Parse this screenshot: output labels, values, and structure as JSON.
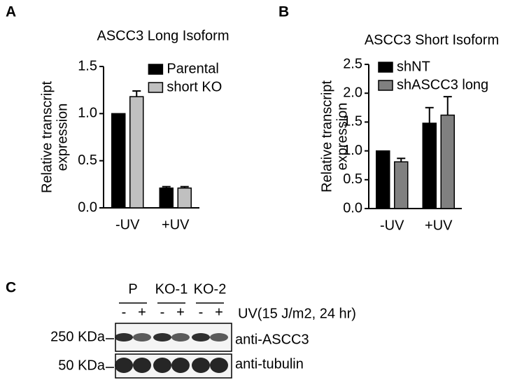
{
  "chart_data": [
    {
      "type": "bar",
      "panel": "A",
      "title": "ASCC3 Long Isoform",
      "ylabel": [
        "Relative transcript",
        "expression"
      ],
      "categories": [
        "-UV",
        "+UV"
      ],
      "series": [
        {
          "name": "Parental",
          "color": "#000000",
          "values": [
            1.0,
            0.21
          ],
          "errors": [
            0,
            0.015
          ]
        },
        {
          "name": "short KO",
          "color": "#c0c0c0",
          "values": [
            1.18,
            0.21
          ],
          "errors": [
            0.06,
            0.015
          ]
        }
      ],
      "ylim": [
        0,
        1.5
      ],
      "yticks": [
        {
          "value": 0,
          "label": "0.0"
        },
        {
          "value": 0.5,
          "label": "0.5"
        },
        {
          "value": 1,
          "label": "1.0"
        },
        {
          "value": 1.5,
          "label": "1.5"
        }
      ],
      "legend": "upper right"
    },
    {
      "type": "bar",
      "panel": "B",
      "title": "ASCC3 Short Isoform",
      "ylabel": [
        "Relative transcript",
        "expression"
      ],
      "categories": [
        "-UV",
        "+UV"
      ],
      "series": [
        {
          "name": "shNT",
          "color": "#000000",
          "values": [
            1.0,
            1.48
          ],
          "errors": [
            0,
            0.27
          ]
        },
        {
          "name": "shASCC3 long",
          "color": "#808080",
          "values": [
            0.81,
            1.62
          ],
          "errors": [
            0.06,
            0.32
          ]
        }
      ],
      "ylim": [
        0,
        2.5
      ],
      "yticks": [
        {
          "value": 0,
          "label": "0.0"
        },
        {
          "value": 0.5,
          "label": "0.5"
        },
        {
          "value": 1,
          "label": "1.0"
        },
        {
          "value": 1.5,
          "label": "1.5"
        },
        {
          "value": 2,
          "label": "2.0"
        },
        {
          "value": 2.5,
          "label": "2.5"
        }
      ],
      "legend": "upper left"
    }
  ],
  "blot": {
    "panel": "C",
    "groups": [
      "P",
      "KO-1",
      "KO-2"
    ],
    "signs": [
      "-",
      "+",
      "-",
      "+",
      "-",
      "+"
    ],
    "treatment": "UV(15 J/m2, 24 hr)",
    "rows": [
      {
        "marker": "250 KDa",
        "antibody": "anti-ASCC3"
      },
      {
        "marker": "50 KDa",
        "antibody": "anti-tubulin"
      }
    ]
  }
}
